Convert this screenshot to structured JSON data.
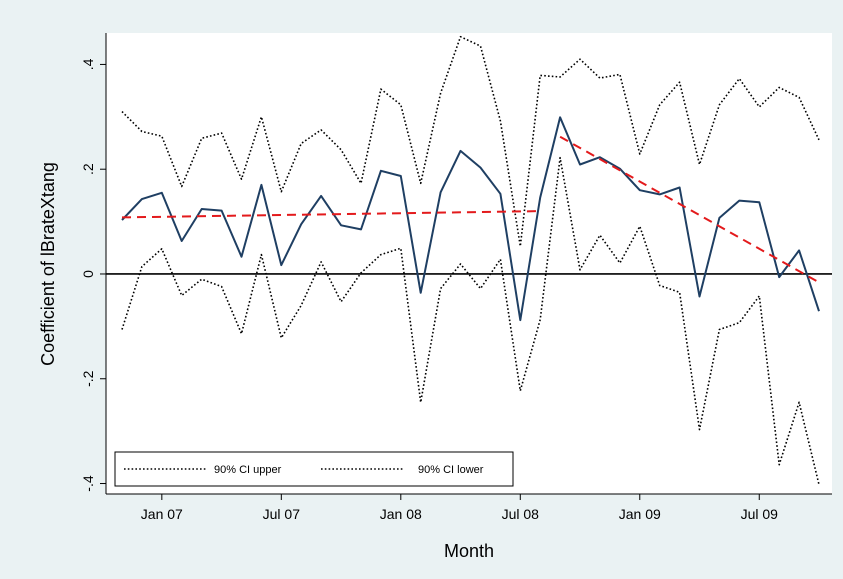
{
  "chart_data": {
    "type": "line",
    "xlabel": "Month",
    "ylabel": "Coefficient of lBrateXtang",
    "x_ticks": [
      "Jan 07",
      "Jul 07",
      "Jan 08",
      "Jul 08",
      "Jan 09",
      "Jul 09"
    ],
    "y_ticks": [
      ".4",
      ".2",
      "0",
      "-.2",
      "-.4"
    ],
    "ylim": [
      -0.42,
      0.46
    ],
    "x_months": [
      "Nov 06",
      "Dec 06",
      "Jan 07",
      "Feb 07",
      "Mar 07",
      "Apr 07",
      "May 07",
      "Jun 07",
      "Jul 07",
      "Aug 07",
      "Sep 07",
      "Oct 07",
      "Nov 07",
      "Dec 07",
      "Jan 08",
      "Feb 08",
      "Mar 08",
      "Apr 08",
      "May 08",
      "Jun 08",
      "Jul 08",
      "Aug 08",
      "Sep 08",
      "Oct 08",
      "Nov 08",
      "Dec 08",
      "Jan 09",
      "Feb 09",
      "Mar 09",
      "Apr 09",
      "May 09",
      "Jun 09",
      "Jul 09",
      "Aug 09",
      "Sep 09",
      "Oct 09"
    ],
    "series": [
      {
        "key": "coef",
        "style": "solid",
        "color": "#1f3f63",
        "values": [
          0.103,
          0.143,
          0.155,
          0.063,
          0.124,
          0.121,
          0.033,
          0.17,
          0.017,
          0.095,
          0.149,
          0.093,
          0.085,
          0.197,
          0.187,
          -0.036,
          0.156,
          0.235,
          0.203,
          0.153,
          -0.088,
          0.146,
          0.299,
          0.209,
          0.223,
          0.201,
          0.16,
          0.152,
          0.165,
          -0.043,
          0.107,
          0.14,
          0.137,
          -0.006,
          0.045,
          -0.071
        ]
      },
      {
        "key": "upper",
        "name": "90% CI upper",
        "style": "dotted",
        "color": "#000000",
        "values": [
          0.31,
          0.272,
          0.263,
          0.167,
          0.259,
          0.269,
          0.181,
          0.3,
          0.157,
          0.249,
          0.275,
          0.237,
          0.173,
          0.353,
          0.323,
          0.173,
          0.345,
          0.453,
          0.435,
          0.292,
          0.053,
          0.379,
          0.376,
          0.41,
          0.374,
          0.381,
          0.229,
          0.323,
          0.366,
          0.209,
          0.323,
          0.373,
          0.319,
          0.356,
          0.337,
          0.256
        ]
      },
      {
        "key": "lower",
        "name": "90% CI lower",
        "style": "dotted",
        "color": "#000000",
        "values": [
          -0.106,
          0.014,
          0.048,
          -0.041,
          -0.01,
          -0.024,
          -0.114,
          0.037,
          -0.122,
          -0.06,
          0.023,
          -0.053,
          0.002,
          0.037,
          0.049,
          -0.245,
          -0.028,
          0.019,
          -0.028,
          0.028,
          -0.223,
          -0.087,
          0.222,
          0.008,
          0.074,
          0.021,
          0.091,
          -0.022,
          -0.035,
          -0.297,
          -0.106,
          -0.093,
          -0.042,
          -0.364,
          -0.245,
          -0.402
        ]
      }
    ],
    "trend_lines": [
      {
        "color": "#e31a1c",
        "style": "dashed",
        "x": [
          "Nov 06",
          "Aug 08"
        ],
        "y": [
          0.108,
          0.12
        ]
      },
      {
        "color": "#e31a1c",
        "style": "dashed",
        "x": [
          "Sep 08",
          "Oct 09"
        ],
        "y": [
          0.262,
          -0.016
        ]
      }
    ],
    "reference_line": {
      "y": 0,
      "color": "#000000"
    },
    "legend": {
      "placement": "bottom-left",
      "entries": [
        "90% CI upper",
        "90% CI lower"
      ]
    },
    "grid": false,
    "colors": {
      "background": "#eaf2f3",
      "plot_region": "#ffffff"
    }
  }
}
